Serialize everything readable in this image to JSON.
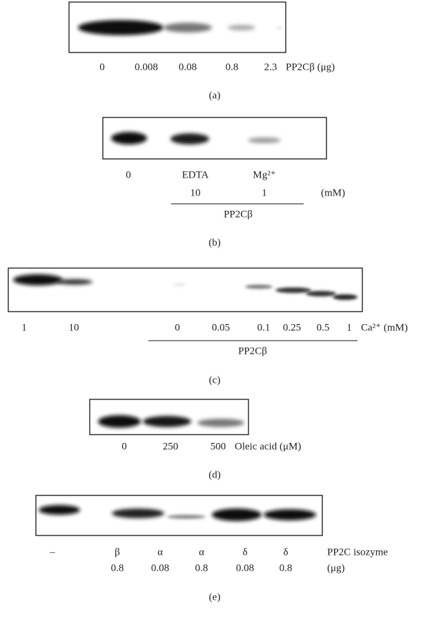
{
  "panels": [
    {
      "lanes": [
        "0",
        "0.008",
        "0.08",
        "0.8",
        "2.3"
      ],
      "unit": "PP2Cβ (μg)",
      "caption": "(a)"
    },
    {
      "lanes": [
        "0",
        "EDTA",
        "Mg²⁺"
      ],
      "lanes_2": [
        "10",
        "1"
      ],
      "unit": "(mM)",
      "group": "PP2Cβ",
      "caption": "(b)"
    },
    {
      "lanes": [
        "1",
        "10",
        "0",
        "0.05",
        "0.1",
        "0.25",
        "0.5",
        "1"
      ],
      "unit": "Ca²⁺ (mM)",
      "group": "PP2Cβ",
      "caption": "(c)"
    },
    {
      "lanes": [
        "0",
        "250",
        "500"
      ],
      "unit": "Oleic acid (μM)",
      "caption": "(d)"
    },
    {
      "lanes": [
        "–",
        "β",
        "α",
        "α",
        "δ",
        "δ"
      ],
      "lanes_2": [
        "0.8",
        "0.08",
        "0.8",
        "0.08",
        "0.8"
      ],
      "unit": "PP2C isozyme",
      "unit_2": "(μg)",
      "caption": "(e)"
    }
  ]
}
